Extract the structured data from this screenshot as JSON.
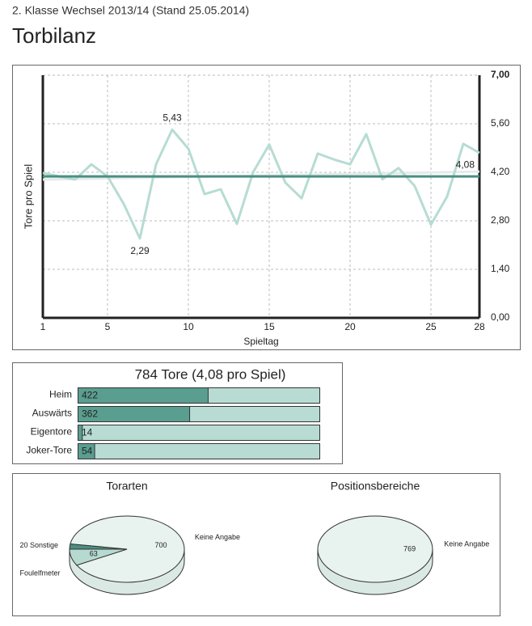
{
  "header": {
    "subtitle": "2. Klasse Wechsel 2013/14 (Stand 25.05.2014)",
    "title": "Torbilanz"
  },
  "chart_data": [
    {
      "type": "line",
      "x_label": "Spieltag",
      "y_label": "Tore pro Spiel",
      "x": [
        1,
        2,
        3,
        4,
        5,
        6,
        7,
        8,
        9,
        10,
        11,
        12,
        13,
        14,
        15,
        16,
        17,
        18,
        19,
        20,
        21,
        22,
        23,
        24,
        25,
        26,
        27,
        28
      ],
      "xlim": [
        1,
        28
      ],
      "xticks": [
        1,
        5,
        10,
        15,
        20,
        25,
        28
      ],
      "ylim": [
        0,
        7
      ],
      "yticks": [
        {
          "value": 0,
          "label": "0,00"
        },
        {
          "value": 1.4,
          "label": "1,40"
        },
        {
          "value": 2.8,
          "label": "2,80"
        },
        {
          "value": 4.2,
          "label": "4,20"
        },
        {
          "value": 5.6,
          "label": "5,60"
        },
        {
          "value": 7,
          "label": "7,00"
        }
      ],
      "grid": true,
      "series": [
        {
          "color": "#e4ecea",
          "x": [
            1,
            28
          ],
          "values": [
            3.99,
            4.22
          ]
        },
        {
          "color": "#b6dcd3",
          "values": [
            4.18,
            4.08,
            3.99,
            4.43,
            4.08,
            3.29,
            2.29,
            4.43,
            5.43,
            4.88,
            3.57,
            3.71,
            2.71,
            4.2,
            5.0,
            3.9,
            3.45,
            4.74,
            4.57,
            4.43,
            5.3,
            4.0,
            4.32,
            3.8,
            2.69,
            3.5,
            5.02,
            4.76
          ],
          "value_labels": [
            null,
            null,
            null,
            null,
            null,
            null,
            "2,29",
            null,
            "5,43",
            null,
            null,
            null,
            null,
            null,
            null,
            null,
            null,
            null,
            null,
            null,
            null,
            null,
            null,
            null,
            null,
            null,
            null,
            null
          ]
        },
        {
          "color": "#4a8f82",
          "x": [
            1,
            28
          ],
          "values": [
            4.08,
            4.08
          ],
          "value_labels": [
            null,
            "4,08"
          ]
        }
      ]
    },
    {
      "type": "bar",
      "title": "784 Tore (4,08 pro Spiel)",
      "categories": [
        "Heim",
        "Auswärts",
        "Eigentore",
        "Joker-Tore"
      ],
      "values": [
        422,
        362,
        14,
        54
      ],
      "xlim": [
        0,
        784
      ],
      "color": "#5a9e90",
      "background_color": "#b8dcd3"
    },
    {
      "type": "pie",
      "title": "Torarten",
      "categories": [
        "Sonstige",
        "Keine Angabe",
        "Foulelfmeter"
      ],
      "values": [
        20,
        700,
        63
      ],
      "colors": [
        "#4a8f82",
        "#e8f2ee",
        "#b6d9d0"
      ]
    },
    {
      "type": "pie",
      "title": "Positionsbereiche",
      "categories": [
        "Keine Angabe"
      ],
      "values": [
        769
      ],
      "colors": [
        "#e8f2ee"
      ]
    }
  ]
}
